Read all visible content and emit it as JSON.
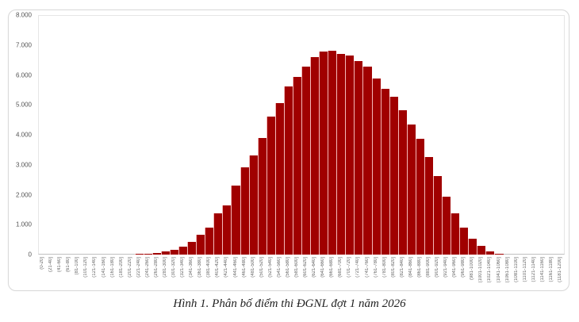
{
  "caption": "Hình 1. Phân bố điểm thi ĐGNL đợt 1 năm 2026",
  "colors": {
    "bar": "#a00000",
    "bar_edge": "#f4b8b8",
    "axis_text": "#555555"
  },
  "y_ticks": [
    "8.000",
    "7.000",
    "6.000",
    "5.000",
    "4.000",
    "3.000",
    "2.000",
    "1.000",
    "0"
  ],
  "chart_data": {
    "type": "bar",
    "title": "Hình 1. Phân bố điểm thi ĐGNL đợt 1 năm 2026",
    "xlabel": "",
    "ylabel": "",
    "ylim": [
      0,
      8000
    ],
    "grid": false,
    "legend": null,
    "categories": [
      "(0-20]",
      "(21-40]",
      "(41-60]",
      "(61-80]",
      "(81-100]",
      "(101-120]",
      "(121-140]",
      "(141-160]",
      "(161-180]",
      "(181-200]",
      "(201-220]",
      "(221-240]",
      "(241-260]",
      "(261-280]",
      "(281-300]",
      "(301-320]",
      "(321-340]",
      "(341-360]",
      "(361-380]",
      "(381-400]",
      "(401-420]",
      "(421-440]",
      "(441-460]",
      "(461-480]",
      "(481-500]",
      "(501-520]",
      "(521-540]",
      "(541-560]",
      "(561-580]",
      "(581-600]",
      "(601-620]",
      "(621-640]",
      "(641-660]",
      "(661-680]",
      "(681-700]",
      "(701-720]",
      "(721-740]",
      "(741-760]",
      "(761-780]",
      "(781-800]",
      "(801-820]",
      "(821-840]",
      "(841-860]",
      "(861-880]",
      "(881-900]",
      "(901-920]",
      "(921-940]",
      "(941-960]",
      "(961-980]",
      "(981-1000]",
      "(1001-1020]",
      "(1021-1040]",
      "(1041-1060]",
      "(1061-1080]",
      "(1081-1100]",
      "(1101-1120]",
      "(1121-1140]",
      "(1141-1160]",
      "(1161-1180]",
      "(1181-1200]"
    ],
    "values": [
      0,
      0,
      0,
      0,
      0,
      0,
      0,
      0,
      0,
      0,
      0,
      10,
      30,
      50,
      100,
      150,
      270,
      420,
      660,
      910,
      1370,
      1630,
      2310,
      2910,
      3320,
      3890,
      4620,
      5060,
      5620,
      5940,
      6270,
      6590,
      6780,
      6820,
      6710,
      6640,
      6460,
      6290,
      5890,
      5550,
      5260,
      4810,
      4350,
      3870,
      3250,
      2630,
      1930,
      1370,
      900,
      540,
      290,
      110,
      30,
      0,
      0,
      0,
      0,
      0,
      0,
      0
    ]
  }
}
